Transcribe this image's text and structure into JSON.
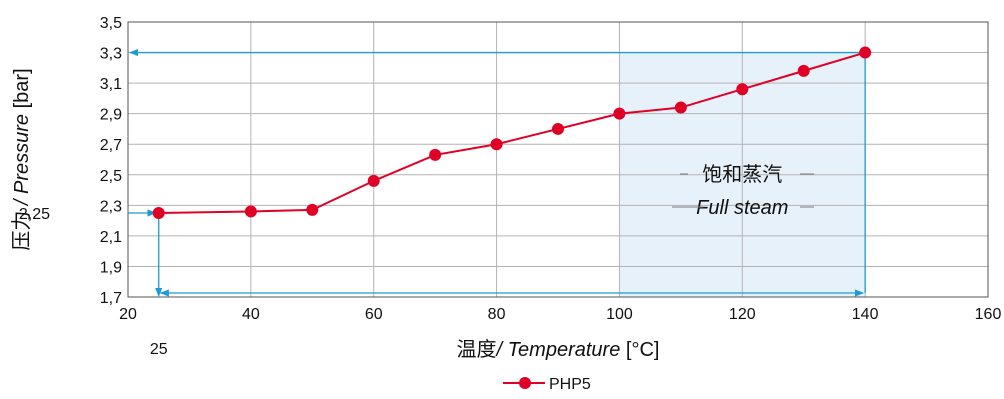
{
  "chart_data": {
    "type": "line",
    "xlabel": {
      "cn": "温度",
      "en": "/ Temperature",
      "unit": "[°C]"
    },
    "ylabel": {
      "cn": "压力",
      "en": " / Pressure",
      "unit": " [bar]"
    },
    "xlim": [
      20,
      160
    ],
    "ylim": [
      1.7,
      3.5
    ],
    "x_ticks": [
      {
        "value": 20,
        "label": "20"
      },
      {
        "value": 40,
        "label": "40"
      },
      {
        "value": 60,
        "label": "60"
      },
      {
        "value": 80,
        "label": "80"
      },
      {
        "value": 100,
        "label": "100"
      },
      {
        "value": 120,
        "label": "120"
      },
      {
        "value": 140,
        "label": "140"
      },
      {
        "value": 160,
        "label": "160"
      }
    ],
    "y_ticks": [
      {
        "value": 1.7,
        "label": "1,7"
      },
      {
        "value": 1.9,
        "label": "1,9"
      },
      {
        "value": 2.1,
        "label": "2,1"
      },
      {
        "value": 2.3,
        "label": "2,3"
      },
      {
        "value": 2.5,
        "label": "2,5"
      },
      {
        "value": 2.7,
        "label": "2,7"
      },
      {
        "value": 2.9,
        "label": "2,9"
      },
      {
        "value": 3.1,
        "label": "3,1"
      },
      {
        "value": 3.3,
        "label": "3,3"
      },
      {
        "value": 3.5,
        "label": "3,5"
      }
    ],
    "grid": true,
    "series": [
      {
        "name": "PHP5",
        "color": "#e00025",
        "x": [
          25,
          40,
          50,
          60,
          70,
          80,
          90,
          100,
          110,
          120,
          130,
          140
        ],
        "y": [
          2.25,
          2.26,
          2.27,
          2.46,
          2.63,
          2.7,
          2.8,
          2.9,
          2.94,
          3.06,
          3.18,
          3.3
        ]
      }
    ],
    "shaded_region": {
      "x": [
        100,
        140
      ],
      "y": [
        1.7,
        3.3
      ],
      "color": "#e6f1fa"
    },
    "region_label": {
      "cn": "饱和蒸汽",
      "en": "Full steam"
    },
    "guides": {
      "color": "#1e9bd7",
      "start": {
        "x": 25,
        "y": 2.25,
        "x_label": "25",
        "y_label": "2,25"
      },
      "end": {
        "x": 140,
        "y": 3.3
      }
    },
    "legend": {
      "position": "bottom-center",
      "label": "PHP5"
    }
  }
}
